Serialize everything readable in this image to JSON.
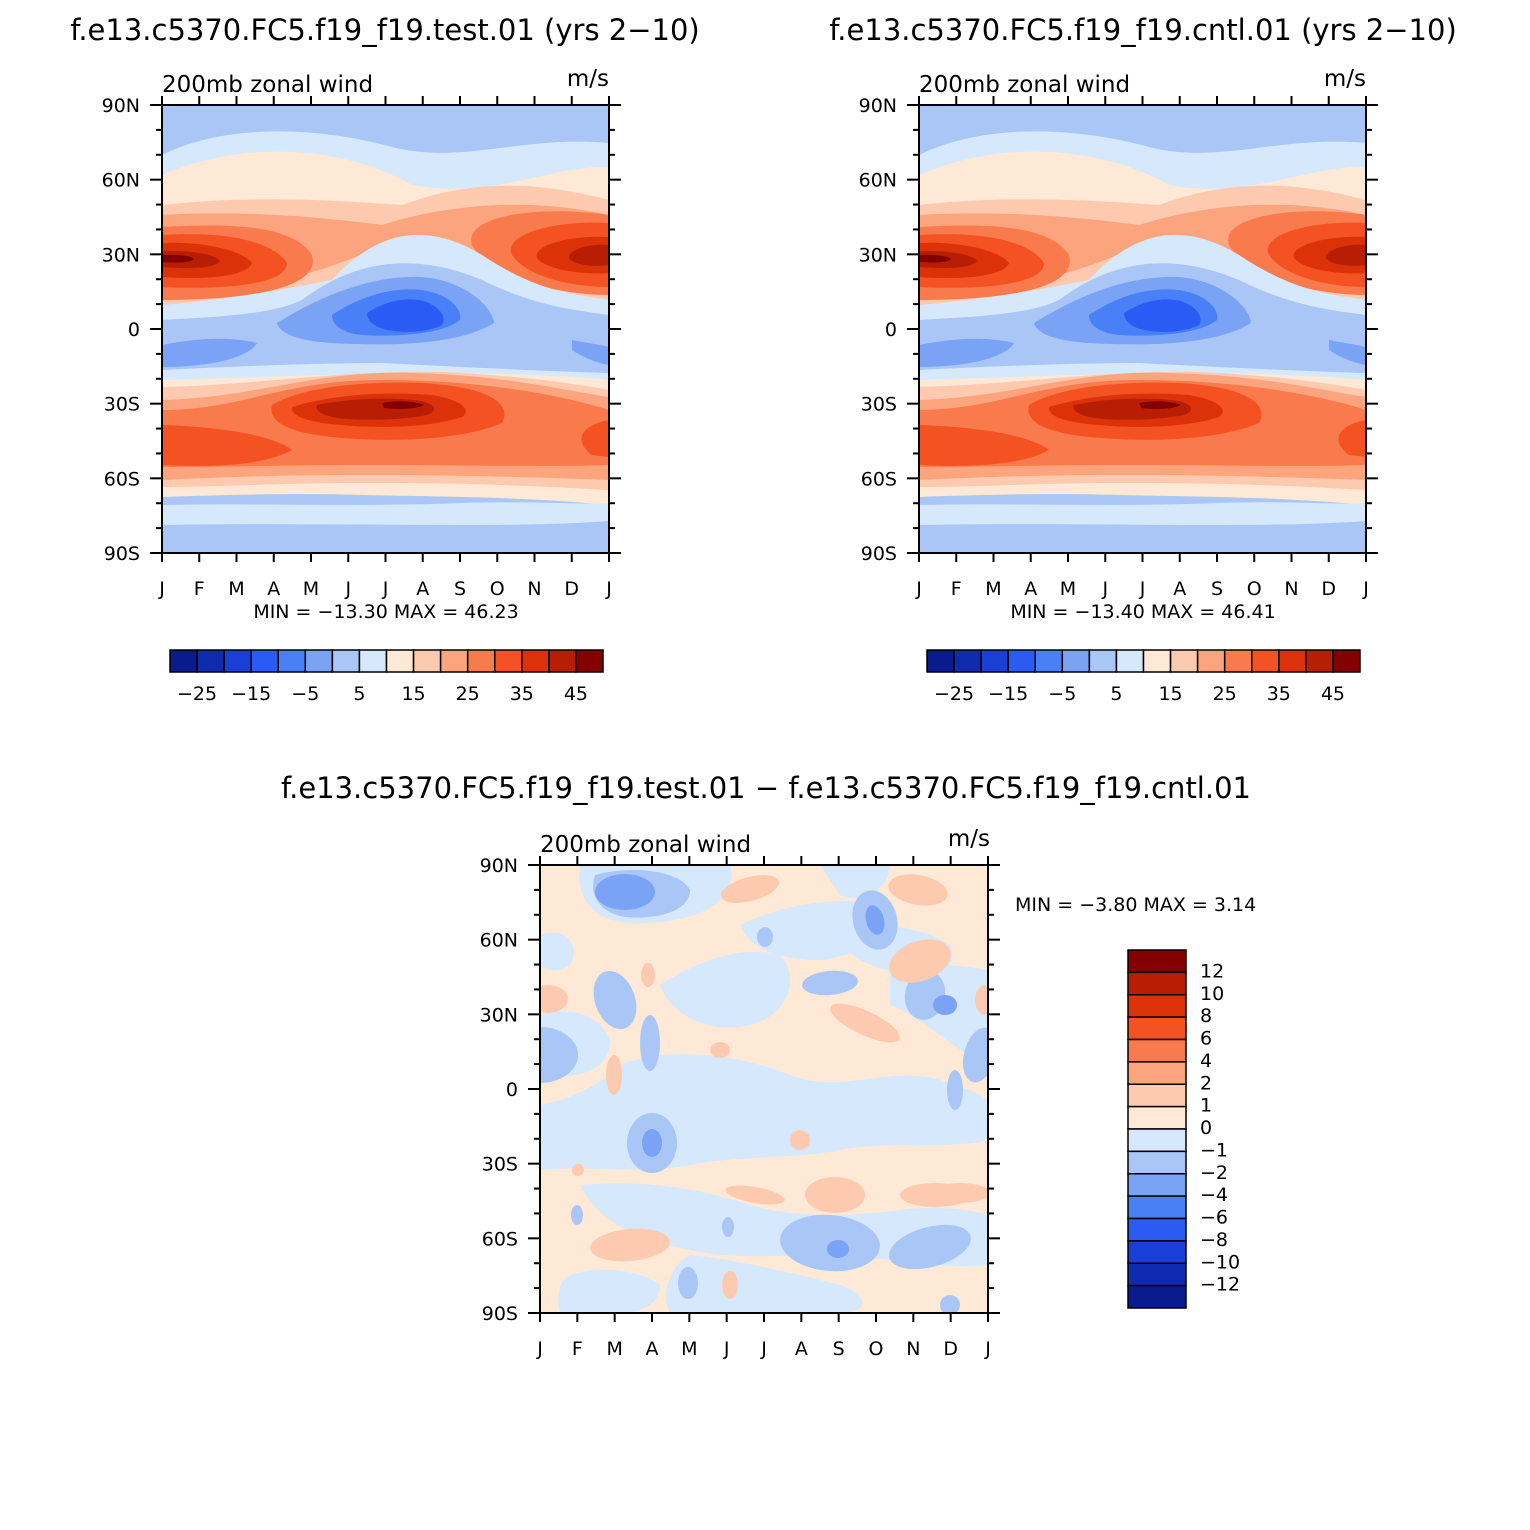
{
  "panels": [
    {
      "title": "f.e13.c5370.FC5.f19_f19.test.01 (yrs 2−10)",
      "left_label": "200mb zonal wind",
      "right_label": "m/s",
      "stats": "MIN = −13.30 MAX =   46.23"
    },
    {
      "title": "f.e13.c5370.FC5.f19_f19.cntl.01 (yrs 2−10)",
      "left_label": "200mb zonal wind",
      "right_label": "m/s",
      "stats": "MIN = −13.40 MAX =   46.41"
    },
    {
      "title": "f.e13.c5370.FC5.f19_f19.test.01 − f.e13.c5370.FC5.f19_f19.cntl.01",
      "left_label": "200mb zonal wind",
      "right_label": "m/s",
      "stats": "MIN =   −3.80 MAX =    3.14"
    }
  ],
  "chart_data": [
    {
      "type": "heatmap",
      "panel": "test",
      "x_ticks": [
        "J",
        "F",
        "M",
        "A",
        "M",
        "J",
        "J",
        "A",
        "S",
        "O",
        "N",
        "D",
        "J"
      ],
      "y_ticks": [
        "90N",
        "60N",
        "30N",
        "0",
        "30S",
        "60S",
        "90S"
      ],
      "y_values": [
        90,
        60,
        30,
        0,
        -30,
        -60,
        -90
      ],
      "colorbar_levels": [
        -25,
        -20,
        -15,
        -10,
        -5,
        0,
        5,
        10,
        15,
        20,
        25,
        30,
        35,
        40,
        45
      ],
      "colorbar_labels": [
        "−25",
        "−15",
        "−5",
        "5",
        "15",
        "25",
        "35",
        "45"
      ],
      "colors": [
        "#0a1a8f",
        "#0f2bb0",
        "#1a3fd6",
        "#2a5cf5",
        "#4a80f7",
        "#7aa3f5",
        "#a9c6f7",
        "#d6e8fc",
        "#fee9d6",
        "#fdcab0",
        "#fca47d",
        "#f97a4d",
        "#f45222",
        "#db3209",
        "#b81e04",
        "#850000"
      ],
      "min": -13.3,
      "max": 46.23
    },
    {
      "type": "heatmap",
      "panel": "cntl",
      "x_ticks": [
        "J",
        "F",
        "M",
        "A",
        "M",
        "J",
        "J",
        "A",
        "S",
        "O",
        "N",
        "D",
        "J"
      ],
      "y_ticks": [
        "90N",
        "60N",
        "30N",
        "0",
        "30S",
        "60S",
        "90S"
      ],
      "y_values": [
        90,
        60,
        30,
        0,
        -30,
        -60,
        -90
      ],
      "colorbar_levels": [
        -25,
        -20,
        -15,
        -10,
        -5,
        0,
        5,
        10,
        15,
        20,
        25,
        30,
        35,
        40,
        45
      ],
      "colorbar_labels": [
        "−25",
        "−15",
        "−5",
        "5",
        "15",
        "25",
        "35",
        "45"
      ],
      "colors": [
        "#0a1a8f",
        "#0f2bb0",
        "#1a3fd6",
        "#2a5cf5",
        "#4a80f7",
        "#7aa3f5",
        "#a9c6f7",
        "#d6e8fc",
        "#fee9d6",
        "#fdcab0",
        "#fca47d",
        "#f97a4d",
        "#f45222",
        "#db3209",
        "#b81e04",
        "#850000"
      ],
      "min": -13.4,
      "max": 46.41
    },
    {
      "type": "heatmap",
      "panel": "difference",
      "x_ticks": [
        "J",
        "F",
        "M",
        "A",
        "M",
        "J",
        "J",
        "A",
        "S",
        "O",
        "N",
        "D",
        "J"
      ],
      "y_ticks": [
        "90N",
        "60N",
        "30N",
        "0",
        "30S",
        "60S",
        "90S"
      ],
      "y_values": [
        90,
        60,
        30,
        0,
        -30,
        -60,
        -90
      ],
      "colorbar_levels": [
        -12,
        -10,
        -8,
        -6,
        -4,
        -2,
        -1,
        0,
        1,
        2,
        4,
        6,
        8,
        10,
        12
      ],
      "colorbar_labels": [
        "12",
        "10",
        "8",
        "6",
        "4",
        "2",
        "1",
        "0",
        "−1",
        "−2",
        "−4",
        "−6",
        "−8",
        "−10",
        "−12"
      ],
      "colors": [
        "#0a1a8f",
        "#0f2bb0",
        "#1a3fd6",
        "#2a5cf5",
        "#4a80f7",
        "#7aa3f5",
        "#a9c6f7",
        "#d6e8fc",
        "#fee9d6",
        "#fdcab0",
        "#fca47d",
        "#f97a4d",
        "#f45222",
        "#db3209",
        "#b81e04",
        "#850000"
      ],
      "min": -3.8,
      "max": 3.14
    }
  ]
}
